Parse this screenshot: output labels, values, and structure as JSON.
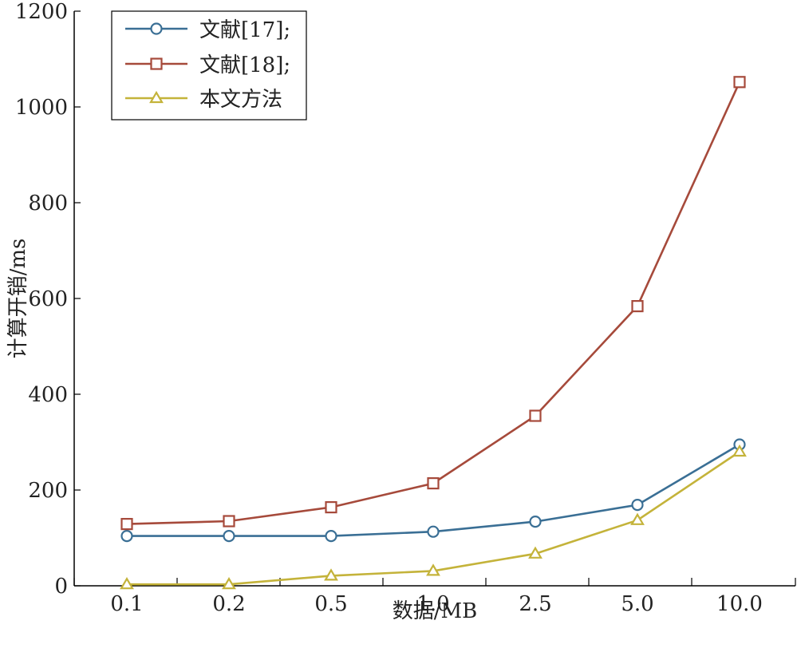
{
  "chart_data": {
    "type": "line",
    "categories": [
      "0.1",
      "0.2",
      "0.5",
      "1.0",
      "2.5",
      "5.0",
      "10.0"
    ],
    "xlabel": "数据/MB",
    "ylabel": "计算开销/ms",
    "ylim": [
      0,
      1200
    ],
    "yticks": [
      "0",
      "200",
      "400",
      "600",
      "800",
      "1000",
      "1200"
    ],
    "grid": false,
    "legend_position": "top-left",
    "series": [
      {
        "name": "文献[17];",
        "marker": "circle",
        "color": "#3a6f95",
        "values": [
          104,
          104,
          104,
          113,
          134,
          169,
          295
        ]
      },
      {
        "name": "文献[18];",
        "marker": "square",
        "color": "#a64a3b",
        "values": [
          129,
          135,
          164,
          214,
          355,
          584,
          1052
        ]
      },
      {
        "name": "本文方法",
        "marker": "triangle",
        "color": "#c4b33a",
        "values": [
          3,
          3,
          21,
          31,
          67,
          137,
          280
        ]
      }
    ]
  }
}
